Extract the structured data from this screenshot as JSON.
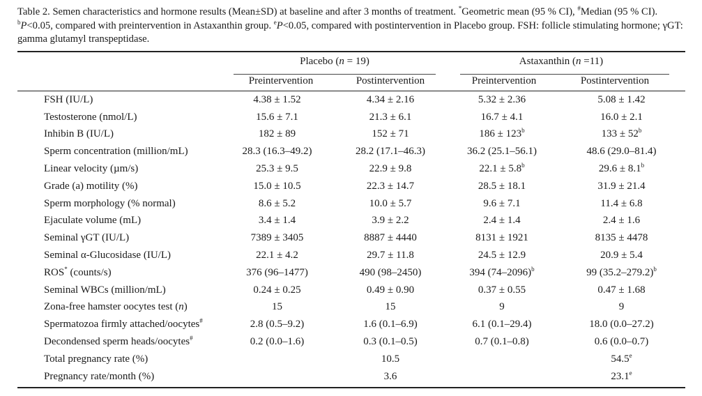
{
  "caption": {
    "a": "Table 2. Semen characteristics and hormone results (Mean±SD) at baseline and after 3 months of treatment. ",
    "b": "*",
    "c": "Geometric mean (95 % CI), ",
    "d": "#",
    "e": "Median (95 % CI). ",
    "f": "b",
    "g": "P",
    "h": "<0.05, compared with preintervention in Astaxanthin group. ",
    "i": "e",
    "j": "P",
    "k": "<0.05, compared with postintervention in Placebo group. FSH: follicle stimulating hormone; γGT: gamma glutamyl transpeptidase."
  },
  "header": {
    "placebo": {
      "name": "Placebo (",
      "n": "n",
      "rest": " = 19)"
    },
    "astax": {
      "name": "Astaxanthin (",
      "n": "n",
      "rest": " =11)"
    },
    "sub": [
      "Preintervention",
      "Postintervention",
      "Preintervention",
      "Postintervention"
    ]
  },
  "rows": [
    {
      "label": "FSH (IU/L)",
      "v": [
        "4.38 ± 1.52",
        "4.34 ± 2.16",
        "5.32 ± 2.36",
        "5.08 ± 1.42"
      ]
    },
    {
      "label": "Testosterone (nmol/L)",
      "v": [
        "15.6 ± 7.1",
        "21.3 ± 6.1",
        "16.7 ± 4.1",
        "16.0 ± 2.1"
      ]
    },
    {
      "label": "Inhibin B (IU/L)",
      "v": [
        "182 ± 89",
        "152 ± 71",
        "186 ± 123",
        "133 ± 52"
      ],
      "m": [
        "",
        "",
        "b",
        "b"
      ]
    },
    {
      "label": "Sperm concentration (million/mL)",
      "v": [
        "28.3 (16.3–49.2)",
        "28.2 (17.1–46.3)",
        "36.2 (25.1–56.1)",
        "48.6 (29.0–81.4)"
      ]
    },
    {
      "label": "Linear velocity (µm/s)",
      "v": [
        "25.3 ± 9.5",
        "22.9 ± 9.8",
        "22.1 ± 5.8",
        "29.6 ± 8.1"
      ],
      "m": [
        "",
        "",
        "b",
        "b"
      ]
    },
    {
      "label": "Grade (a) motility (%)",
      "v": [
        "15.0 ± 10.5",
        "22.3 ± 14.7",
        "28.5 ± 18.1",
        "31.9 ± 21.4"
      ]
    },
    {
      "label": "Sperm morphology (% normal)",
      "v": [
        "8.6 ± 5.2",
        "10.0 ± 5.7",
        "9.6 ± 7.1",
        "11.4 ± 6.8"
      ]
    },
    {
      "label": "Ejaculate volume (mL)",
      "v": [
        "3.4 ± 1.4",
        "3.9 ± 2.2",
        "2.4 ± 1.4",
        "2.4 ± 1.6"
      ]
    },
    {
      "label": "Seminal γGT (IU/L)",
      "v": [
        "7389 ± 3405",
        "8887 ± 4440",
        "8131 ± 1921",
        "8135 ± 4478"
      ]
    },
    {
      "label": "Seminal α-Glucosidase (IU/L)",
      "v": [
        "22.1 ± 4.2",
        "29.7 ± 11.8",
        "24.5 ± 12.9",
        "20.9 ± 5.4"
      ]
    },
    {
      "label": "ROS",
      "lm": "*",
      "label2": " (counts/s)",
      "v": [
        "376 (96–1477)",
        "490 (98–2450)",
        "394 (74–2096)",
        "99 (35.2–279.2)"
      ],
      "m": [
        "",
        "",
        "b",
        "b"
      ]
    },
    {
      "label": "Seminal WBCs (million/mL)",
      "v": [
        "0.24 ± 0.25",
        "0.49 ± 0.90",
        "0.37 ± 0.55",
        "0.47 ± 1.68"
      ]
    },
    {
      "label": "Zona-free hamster oocytes test (",
      "li": "n",
      "label2": ")",
      "v": [
        "15",
        "15",
        "9",
        "9"
      ]
    },
    {
      "label": "Spermatozoa firmly attached/oocytes",
      "lm": "#",
      "v": [
        "2.8 (0.5–9.2)",
        "1.6 (0.1–6.9)",
        "6.1 (0.1–29.4)",
        "18.0 (0.0–27.2)"
      ]
    },
    {
      "label": "Decondensed sperm heads/oocytes",
      "lm": "#",
      "v": [
        "0.2 (0.0–1.6)",
        "0.3 (0.1–0.5)",
        "0.7 (0.1–0.8)",
        "0.6 (0.0–0.7)"
      ]
    },
    {
      "label": "Total pregnancy rate (%)",
      "v": [
        "",
        "10.5",
        "",
        "54.5"
      ],
      "m": [
        "",
        "",
        "",
        "e"
      ]
    },
    {
      "label": "Pregnancy rate/month (%)",
      "v": [
        "",
        "3.6",
        "",
        "23.1"
      ],
      "m": [
        "",
        "",
        "",
        "e"
      ]
    }
  ]
}
